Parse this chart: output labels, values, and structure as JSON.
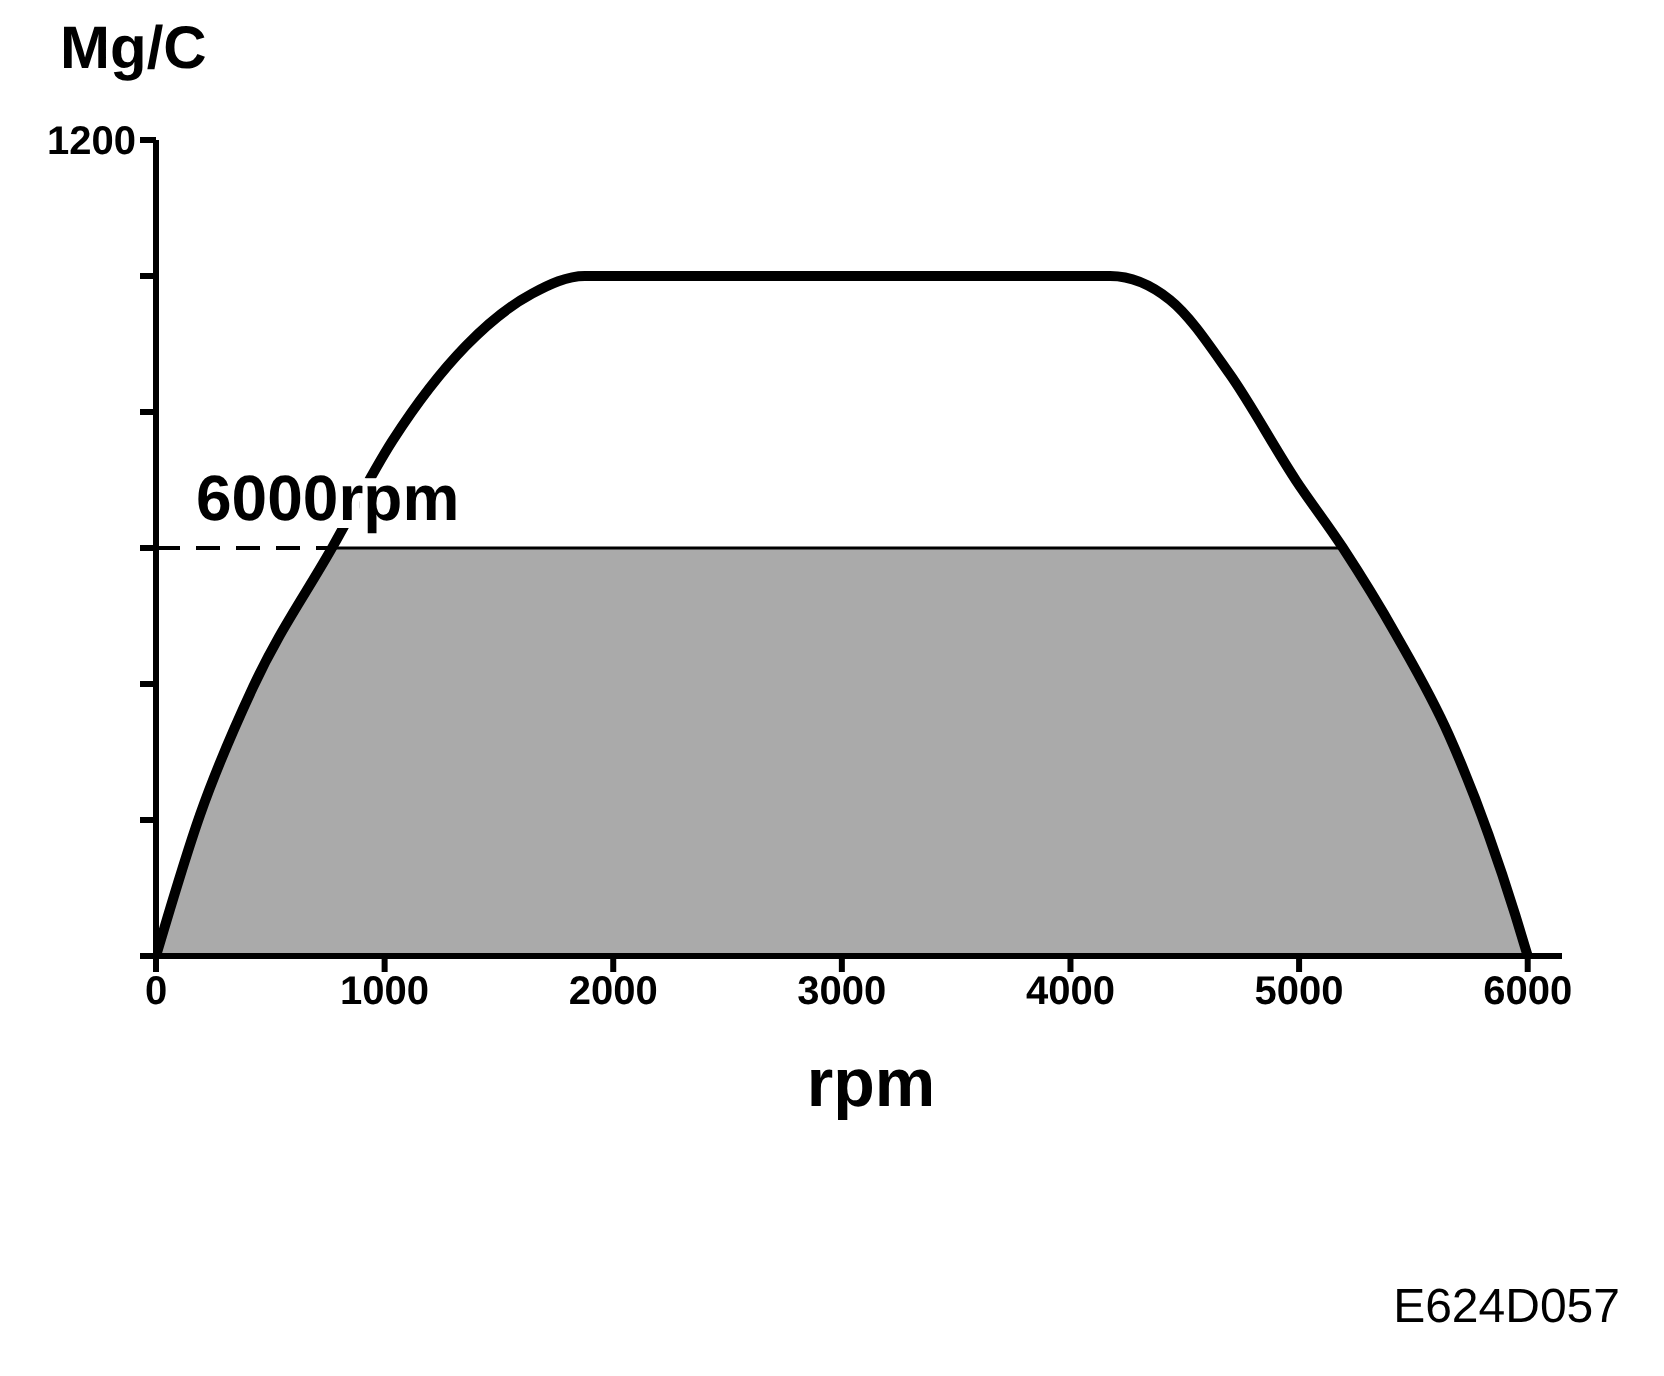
{
  "chart_data": {
    "type": "line",
    "ylabel": "Mg/C",
    "xlabel": "rpm",
    "marker": "none",
    "line_style": "solid",
    "grid": false,
    "legend": false,
    "xlim": [
      0,
      6150
    ],
    "xticks": [
      {
        "value": 0,
        "label": "0"
      },
      1000,
      2000,
      3000,
      4000,
      5000,
      6000
    ],
    "ylim": [
      0,
      1200
    ],
    "yticks": [
      {
        "value": 0,
        "label": null
      },
      {
        "value": 200,
        "label": null
      },
      {
        "value": 400,
        "label": null
      },
      {
        "value": 600,
        "label": null
      },
      {
        "value": 800,
        "label": null
      },
      {
        "value": 1000,
        "label": null
      },
      1200
    ],
    "series": [
      {
        "type": "area",
        "color": "#aaaaaa",
        "x": [
          0,
          192,
          424,
          773,
          5190,
          5423,
          5655,
          5829,
          5946,
          6000
        ],
        "values": [
          0,
          207,
          395,
          600,
          600,
          473,
          325,
          178,
          60,
          0
        ]
      },
      {
        "color": "#000000",
        "x": [
          0,
          192,
          424,
          773,
          1035,
          1355,
          1645,
          1875,
          4174,
          4435,
          4696,
          4987,
          5190,
          5423,
          5655,
          5829,
          5946,
          6000
        ],
        "values": [
          0,
          207,
          395,
          602,
          758,
          897,
          974,
          1000,
          1000,
          965,
          856,
          699,
          601,
          473,
          325,
          178,
          60,
          0
        ]
      }
    ],
    "ref_lines": [
      {
        "axis": "y",
        "value": 600,
        "label": "6000rpm",
        "line_style": "dashed",
        "color": "#000000"
      }
    ],
    "annotations": [
      "E624D057"
    ]
  }
}
